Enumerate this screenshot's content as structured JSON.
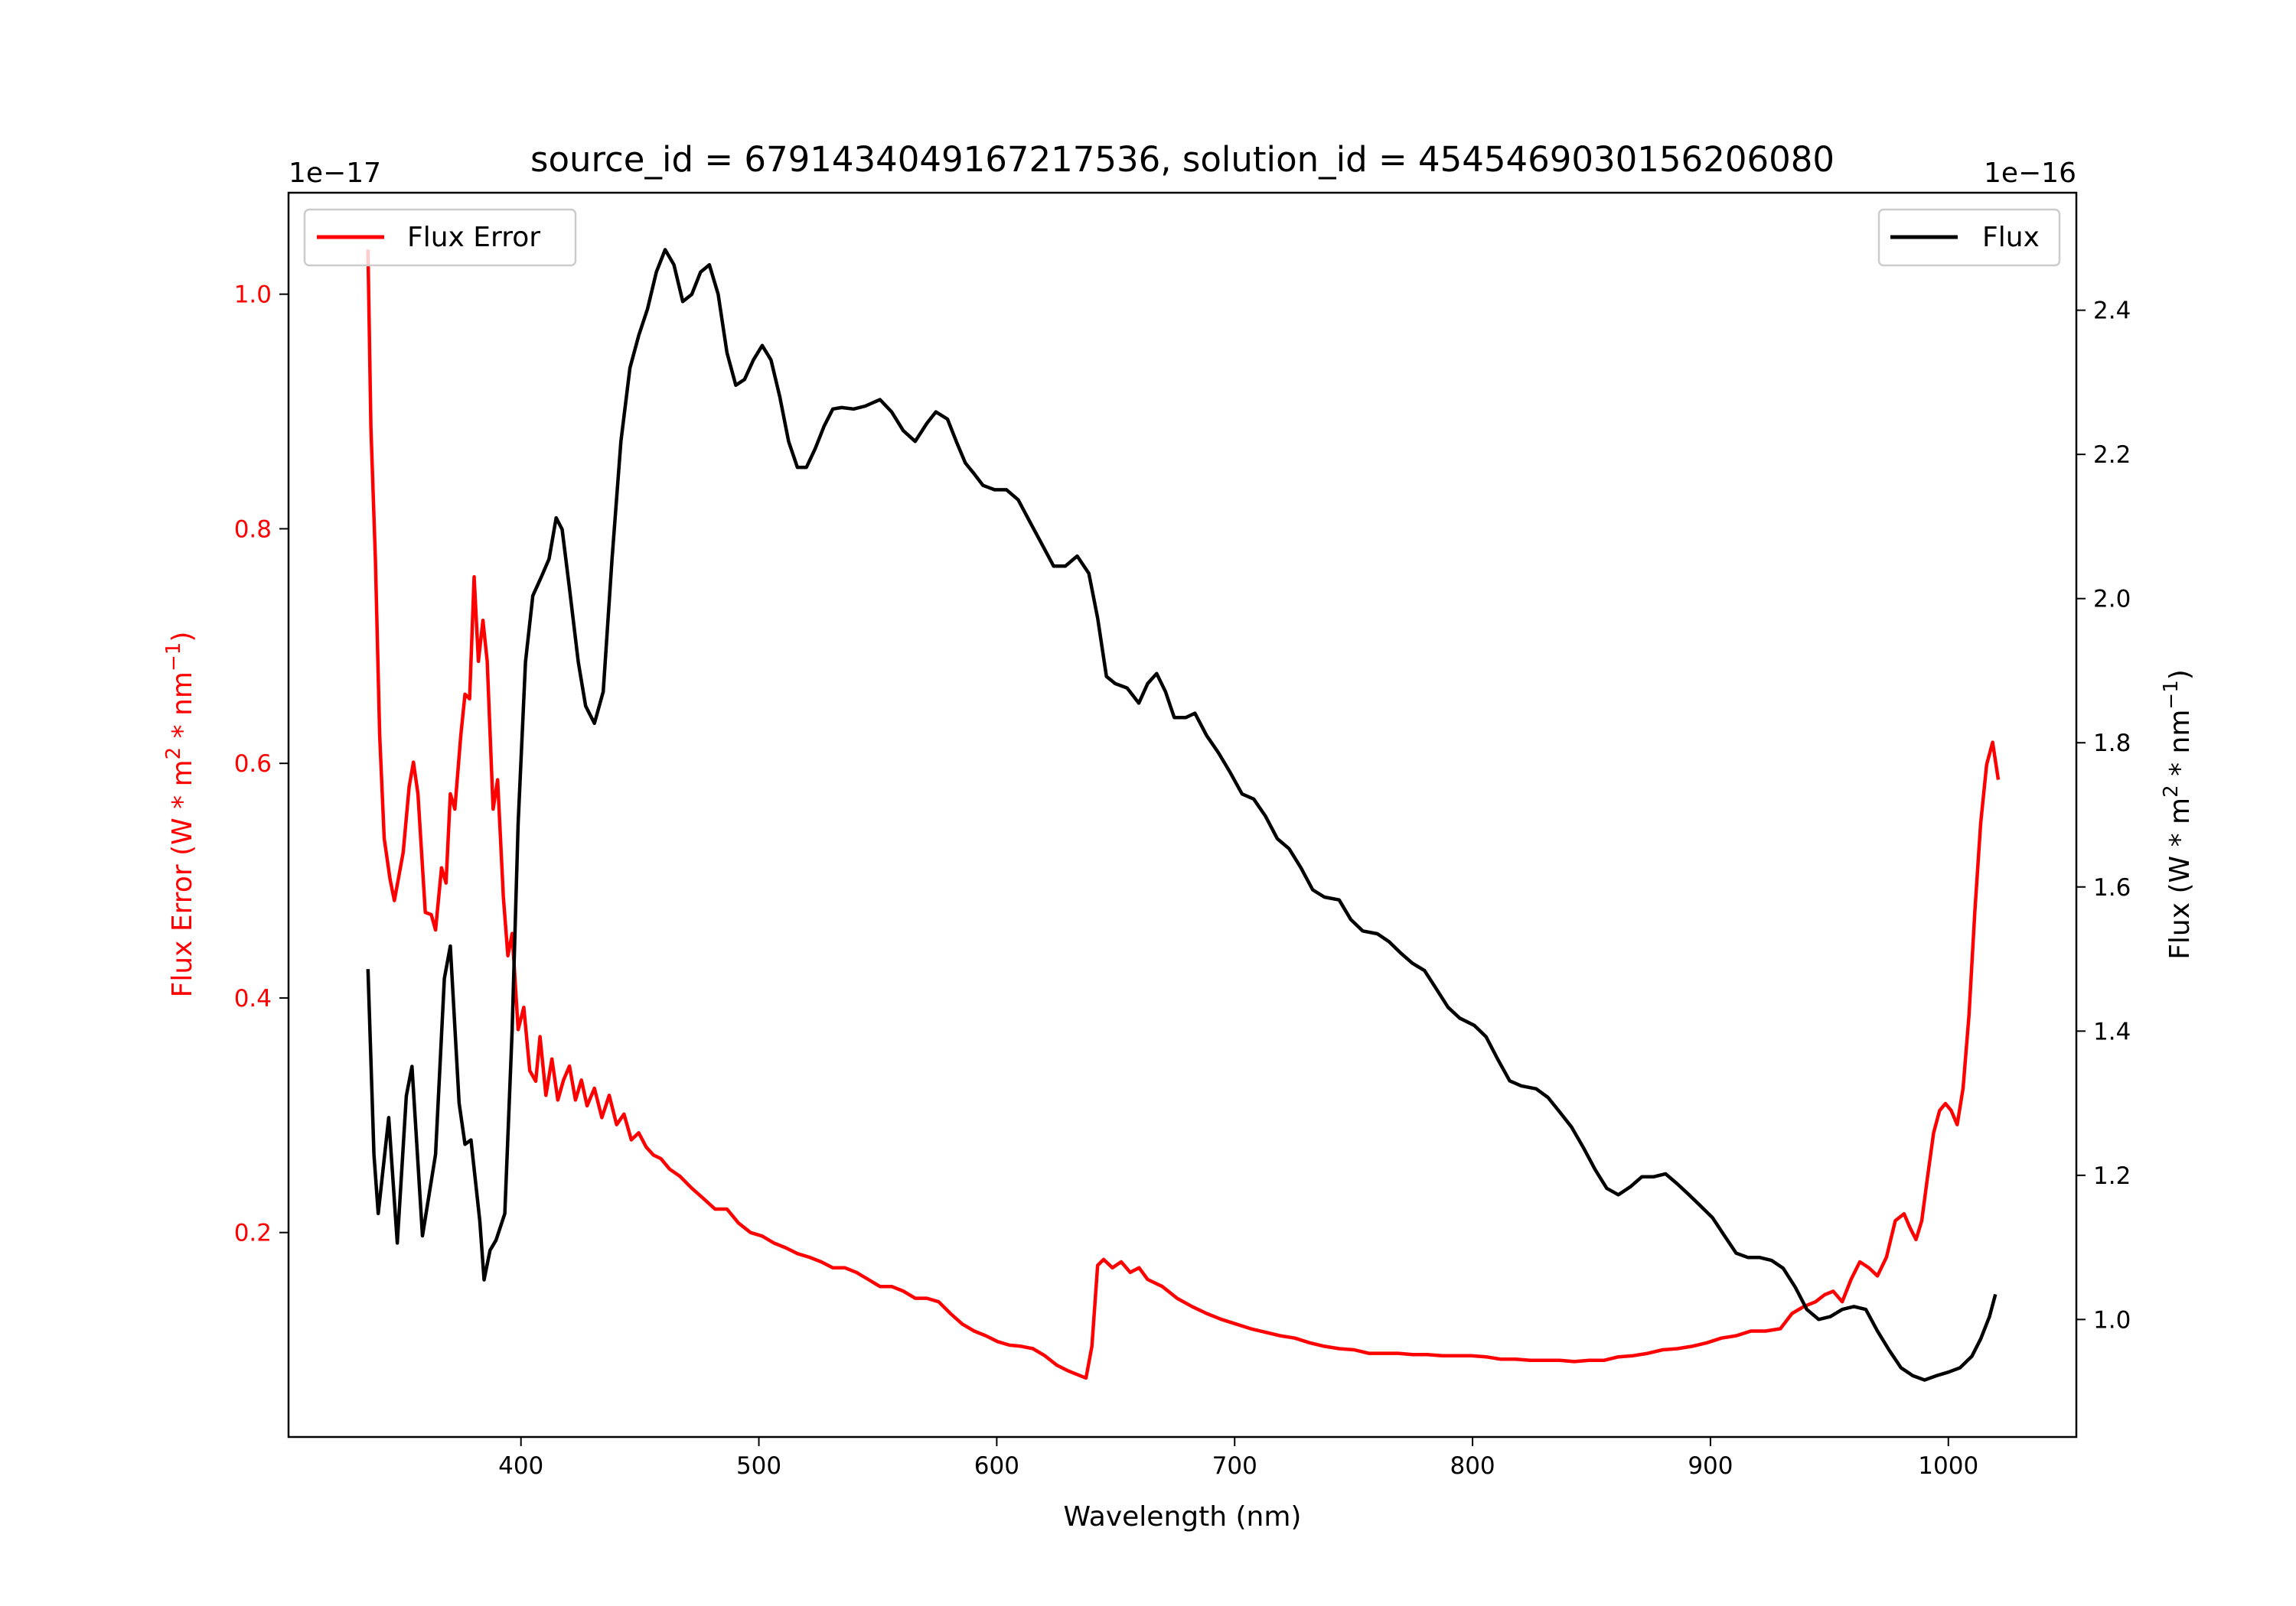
{
  "chart_data": {
    "type": "line",
    "title": "source_id = 6791434049167217536, solution_id = 4545469030156206080",
    "xlabel": "Wavelength (nm)",
    "xlim": [
      302.3,
      1053.8
    ],
    "xticks": [
      400,
      500,
      600,
      700,
      800,
      900,
      1000
    ],
    "xtick_labels": [
      "400",
      "500",
      "600",
      "700",
      "800",
      "900",
      "1000"
    ],
    "grid": false,
    "left_axis": {
      "ylabel": {
        "pre": "Flux Error (W * m",
        "sup1": "2",
        "mid": " * nm",
        "sup2": "−1",
        "post": ")"
      },
      "offset_text": "1e−17",
      "ylim": [
        0.0257,
        1.0865
      ],
      "yticks": [
        0.2,
        0.4,
        0.6,
        0.8,
        1.0
      ],
      "ytick_labels": [
        "0.2",
        "0.4",
        "0.6",
        "0.8",
        "1.0"
      ],
      "color": "#ff0000"
    },
    "right_axis": {
      "ylabel": {
        "pre": "Flux (W * m",
        "sup1": "2",
        "mid": " * nm",
        "sup2": "−1",
        "post": ")"
      },
      "offset_text": "1e−16",
      "ylim": [
        0.837,
        2.563
      ],
      "yticks": [
        1.0,
        1.2,
        1.4,
        1.6,
        1.8,
        2.0,
        2.2,
        2.4
      ],
      "ytick_labels": [
        "1.0",
        "1.2",
        "1.4",
        "1.6",
        "1.8",
        "2.0",
        "2.2",
        "2.4"
      ],
      "color": "#000000"
    },
    "series": [
      {
        "name": "Flux Error",
        "axis": "left",
        "color": "#ff0000",
        "legend": "top-left",
        "x": [
          335.7,
          336.9,
          338.8,
          340.6,
          342.5,
          345,
          346.8,
          350.5,
          353,
          354.8,
          356.7,
          359.8,
          362.3,
          364.1,
          366.6,
          368.5,
          370.3,
          372.2,
          374.7,
          376.5,
          378.4,
          380.3,
          382.1,
          384,
          385.8,
          388.3,
          390.2,
          392.6,
          394.5,
          396.3,
          398.8,
          401.2,
          403.7,
          406.2,
          408,
          410.5,
          413,
          415.5,
          417.9,
          420.4,
          422.9,
          425.4,
          427.8,
          430.9,
          434,
          437.1,
          440.2,
          443.3,
          446.4,
          449.5,
          452.6,
          455.7,
          458.8,
          462.5,
          466.8,
          471.7,
          476.7,
          481.6,
          486.6,
          491.5,
          496.5,
          501.4,
          506.4,
          511.3,
          516.3,
          521.2,
          526.2,
          531.1,
          536.1,
          541,
          546,
          550.9,
          555.8,
          560.8,
          565.7,
          570.6,
          575.6,
          580.5,
          585.5,
          590.5,
          595.4,
          600.4,
          605.3,
          610.3,
          615.2,
          620.2,
          625.2,
          630.1,
          635,
          637.5,
          640,
          642.4,
          644.9,
          648.6,
          652.3,
          656.1,
          659.8,
          663.4,
          669.6,
          675.8,
          682,
          688.2,
          694.4,
          700.6,
          706.7,
          712.9,
          719.1,
          725.3,
          731.5,
          737.7,
          743.9,
          750.2,
          756.3,
          762.5,
          768.7,
          774.8,
          781,
          787.2,
          793.3,
          799.5,
          805.7,
          811.9,
          818.1,
          824.2,
          830.4,
          836.6,
          842.8,
          849,
          855.2,
          861.3,
          867.5,
          873.7,
          879.9,
          886.1,
          892.3,
          898.5,
          904.6,
          910.8,
          917,
          923.2,
          929.4,
          934.3,
          939.3,
          944.2,
          948,
          951.6,
          955.4,
          959.1,
          962.8,
          966.6,
          970.2,
          974,
          977.7,
          981.4,
          983.9,
          986.4,
          988.8,
          991.3,
          993.8,
          996.3,
          998.8,
          1001.2,
          1003.7,
          1006.2,
          1008.7,
          1011.1,
          1013.6,
          1016.1,
          1018.6,
          1021
        ],
        "y": [
          1.038,
          0.887,
          0.774,
          0.624,
          0.536,
          0.501,
          0.483,
          0.524,
          0.58,
          0.601,
          0.574,
          0.473,
          0.471,
          0.458,
          0.511,
          0.498,
          0.574,
          0.561,
          0.624,
          0.659,
          0.655,
          0.759,
          0.687,
          0.722,
          0.687,
          0.561,
          0.586,
          0.486,
          0.436,
          0.455,
          0.373,
          0.392,
          0.338,
          0.329,
          0.367,
          0.317,
          0.348,
          0.313,
          0.33,
          0.342,
          0.313,
          0.33,
          0.308,
          0.323,
          0.298,
          0.317,
          0.292,
          0.301,
          0.279,
          0.285,
          0.273,
          0.266,
          0.263,
          0.254,
          0.248,
          0.238,
          0.229,
          0.22,
          0.22,
          0.208,
          0.2,
          0.197,
          0.191,
          0.187,
          0.182,
          0.179,
          0.175,
          0.17,
          0.17,
          0.166,
          0.16,
          0.154,
          0.154,
          0.15,
          0.144,
          0.144,
          0.141,
          0.131,
          0.122,
          0.116,
          0.112,
          0.107,
          0.104,
          0.103,
          0.101,
          0.095,
          0.087,
          0.082,
          0.078,
          0.076,
          0.103,
          0.172,
          0.177,
          0.17,
          0.175,
          0.166,
          0.17,
          0.16,
          0.154,
          0.144,
          0.137,
          0.131,
          0.126,
          0.122,
          0.118,
          0.115,
          0.112,
          0.11,
          0.106,
          0.103,
          0.101,
          0.1,
          0.097,
          0.097,
          0.097,
          0.096,
          0.096,
          0.095,
          0.095,
          0.095,
          0.094,
          0.092,
          0.092,
          0.091,
          0.091,
          0.091,
          0.09,
          0.091,
          0.091,
          0.094,
          0.095,
          0.097,
          0.1,
          0.101,
          0.103,
          0.106,
          0.11,
          0.112,
          0.116,
          0.116,
          0.118,
          0.131,
          0.137,
          0.141,
          0.147,
          0.15,
          0.141,
          0.16,
          0.175,
          0.17,
          0.163,
          0.179,
          0.21,
          0.216,
          0.204,
          0.194,
          0.21,
          0.248,
          0.285,
          0.304,
          0.31,
          0.304,
          0.292,
          0.323,
          0.386,
          0.473,
          0.549,
          0.599,
          0.618,
          0.586
        ]
      },
      {
        "name": "Flux",
        "axis": "right",
        "color": "#000000",
        "legend": "top-right",
        "x": [
          335.7,
          338.2,
          340,
          344.4,
          348,
          351.8,
          354.2,
          358.6,
          364.1,
          367.8,
          370.3,
          374,
          376.5,
          379,
          382.7,
          384.5,
          387,
          389.5,
          393.2,
          396.3,
          398.8,
          401.9,
          405,
          408.7,
          411.8,
          414.8,
          417.3,
          420.4,
          424.1,
          427.2,
          430.9,
          434.6,
          438.3,
          442,
          445.8,
          449.5,
          453.2,
          456.9,
          460.6,
          464.3,
          468,
          471.8,
          475.5,
          479.2,
          482.9,
          486.6,
          490.3,
          494,
          497.7,
          501.4,
          505.1,
          508.8,
          512.5,
          516.2,
          520,
          523.7,
          527.4,
          531.1,
          534.8,
          539.8,
          544.7,
          550.9,
          555.8,
          560.7,
          565.7,
          570.6,
          574.4,
          579.3,
          583,
          586.8,
          590.5,
          594.2,
          599.1,
          604.1,
          609,
          614,
          618.9,
          623.9,
          628.8,
          633.8,
          638.7,
          642.4,
          646.1,
          649.8,
          654.8,
          659.7,
          663.4,
          667.2,
          670.9,
          674.6,
          679.5,
          683.3,
          688.2,
          693.2,
          698.1,
          703.1,
          708,
          713,
          717.9,
          722.9,
          727.8,
          732.8,
          737.7,
          743.9,
          748.8,
          753.8,
          760,
          764.9,
          769.9,
          774.8,
          779.8,
          784.7,
          789.7,
          794.6,
          800.7,
          805.7,
          810.6,
          815.6,
          820.5,
          826.7,
          831.7,
          836.6,
          841.6,
          846.5,
          851.5,
          856.4,
          861.3,
          866.3,
          871.2,
          876.2,
          881.1,
          886.1,
          891,
          896,
          900.9,
          905.9,
          910.8,
          915.8,
          920.7,
          925.7,
          930.6,
          935.6,
          940.5,
          945.5,
          950.4,
          955.4,
          960.3,
          965.3,
          970.2,
          975.2,
          980.1,
          985.1,
          990,
          995,
          1000,
          1004.9,
          1009.9,
          1013.6,
          1017.3,
          1019.8
        ],
        "y": [
          1.486,
          1.229,
          1.147,
          1.28,
          1.106,
          1.31,
          1.351,
          1.116,
          1.229,
          1.473,
          1.518,
          1.3,
          1.243,
          1.249,
          1.137,
          1.055,
          1.096,
          1.11,
          1.147,
          1.402,
          1.688,
          1.912,
          2.004,
          2.031,
          2.055,
          2.112,
          2.096,
          2.014,
          1.912,
          1.851,
          1.827,
          1.871,
          2.055,
          2.218,
          2.32,
          2.365,
          2.402,
          2.453,
          2.484,
          2.463,
          2.412,
          2.422,
          2.453,
          2.463,
          2.422,
          2.341,
          2.296,
          2.304,
          2.331,
          2.351,
          2.331,
          2.28,
          2.218,
          2.182,
          2.182,
          2.208,
          2.239,
          2.263,
          2.265,
          2.263,
          2.267,
          2.276,
          2.259,
          2.233,
          2.218,
          2.243,
          2.259,
          2.249,
          2.218,
          2.188,
          2.173,
          2.157,
          2.151,
          2.151,
          2.137,
          2.106,
          2.076,
          2.045,
          2.045,
          2.059,
          2.035,
          1.973,
          1.892,
          1.882,
          1.876,
          1.855,
          1.882,
          1.896,
          1.871,
          1.835,
          1.835,
          1.841,
          1.81,
          1.786,
          1.759,
          1.729,
          1.722,
          1.698,
          1.667,
          1.653,
          1.627,
          1.596,
          1.586,
          1.582,
          1.555,
          1.539,
          1.535,
          1.524,
          1.508,
          1.494,
          1.484,
          1.459,
          1.433,
          1.418,
          1.408,
          1.392,
          1.361,
          1.331,
          1.324,
          1.32,
          1.308,
          1.288,
          1.267,
          1.239,
          1.208,
          1.182,
          1.173,
          1.184,
          1.198,
          1.198,
          1.202,
          1.188,
          1.173,
          1.157,
          1.141,
          1.116,
          1.092,
          1.086,
          1.086,
          1.082,
          1.071,
          1.045,
          1.014,
          1.0,
          1.004,
          1.014,
          1.018,
          1.014,
          0.984,
          0.957,
          0.933,
          0.922,
          0.916,
          0.922,
          0.927,
          0.933,
          0.949,
          0.973,
          1.004,
          1.035
        ]
      }
    ]
  }
}
